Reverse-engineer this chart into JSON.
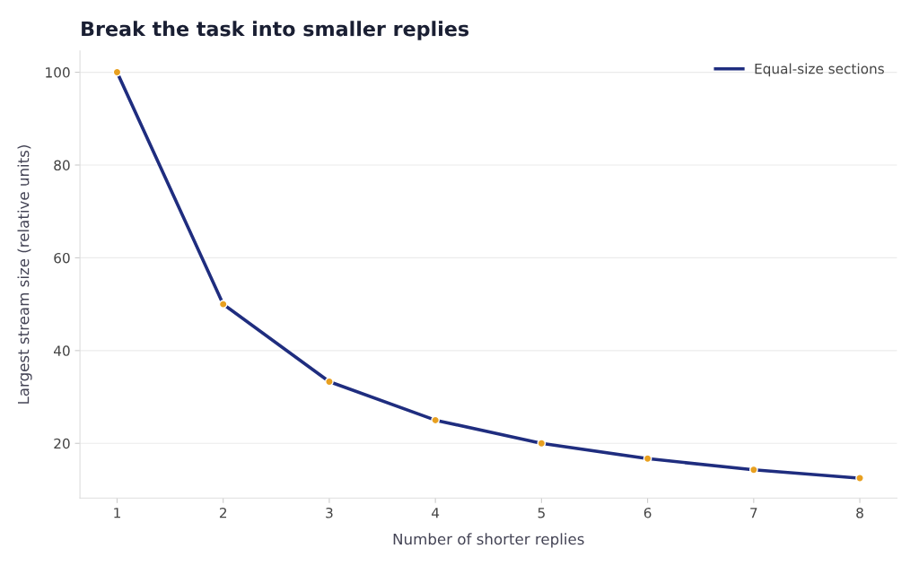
{
  "chart_data": {
    "type": "line",
    "title": "Break the task into smaller replies",
    "xlabel": "Number of shorter replies",
    "ylabel": "Largest stream size (relative units)",
    "x": [
      1,
      2,
      3,
      4,
      5,
      6,
      7,
      8
    ],
    "series": [
      {
        "name": "Equal-size sections",
        "color": "#1f2d7f",
        "values": [
          100,
          50,
          33.3,
          25,
          20,
          16.7,
          14.3,
          12.5
        ],
        "marker": "none",
        "line_style": "solid"
      },
      {
        "type": "scatter",
        "color": "#e8a020",
        "values": [
          100,
          50,
          33.3,
          25,
          20,
          16.7,
          14.3,
          12.5
        ],
        "marker": "circle"
      }
    ],
    "xlim": [
      0.65,
      8.35
    ],
    "ylim": [
      8.2,
      104.6
    ],
    "xticks": [
      1,
      2,
      3,
      4,
      5,
      6,
      7,
      8
    ],
    "yticks": [
      20,
      40,
      60,
      80,
      100
    ],
    "grid": "y",
    "legend": "top right"
  }
}
